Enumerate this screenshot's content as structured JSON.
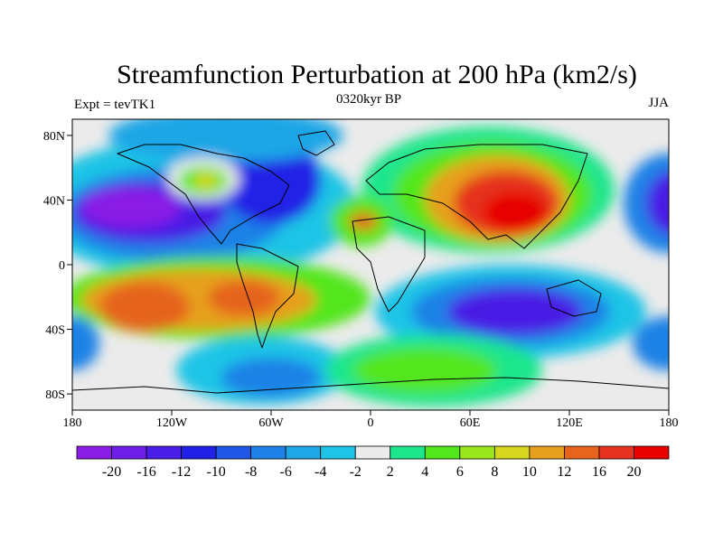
{
  "chart_data": {
    "type": "heatmap",
    "title": "Streamfunction Perturbation at 200 hPa (km2/s)",
    "left_label": "Expt = tevTK1",
    "center_label": "0320kyr BP",
    "right_label": "JJA",
    "x_ticks": [
      "180",
      "120W",
      "60W",
      "0",
      "60E",
      "120E",
      "180"
    ],
    "x_tick_lon": [
      -180,
      -120,
      -60,
      0,
      60,
      120,
      180
    ],
    "y_ticks": [
      "80N",
      "40N",
      "0",
      "40S",
      "80S"
    ],
    "y_tick_lat": [
      80,
      40,
      0,
      -40,
      -80
    ],
    "xlim": [
      -180,
      180
    ],
    "ylim": [
      -90,
      90
    ],
    "colorbar": {
      "colors": [
        "#8a1ee6",
        "#6e1ee6",
        "#4a1ee6",
        "#2020e6",
        "#1e56e6",
        "#1e82e6",
        "#1ea6e6",
        "#1ec4e6",
        "#ebebeb",
        "#1ee68c",
        "#52e61e",
        "#9ce61e",
        "#d6d61e",
        "#e6a01e",
        "#e6641e",
        "#e6321e",
        "#e60000"
      ],
      "labels": [
        "-20",
        "-16",
        "-12",
        "-10",
        "-8",
        "-6",
        "-4",
        "-2",
        "2",
        "4",
        "6",
        "8",
        "10",
        "12",
        "16",
        "20"
      ],
      "levels": [
        -20,
        -16,
        -12,
        -10,
        -8,
        -6,
        -4,
        -2,
        2,
        4,
        6,
        8,
        10,
        12,
        16,
        20
      ]
    }
  }
}
